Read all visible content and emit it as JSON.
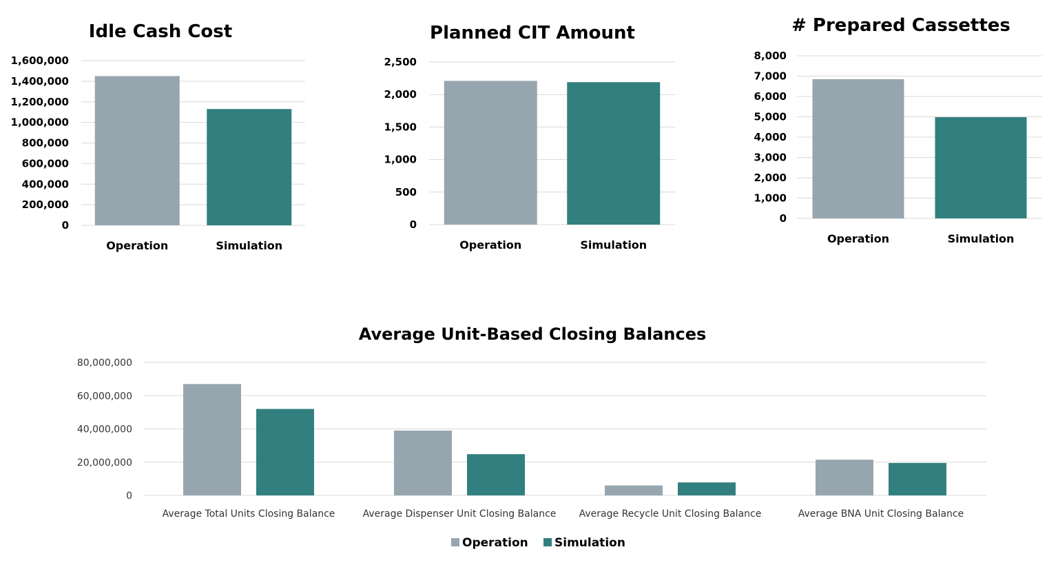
{
  "chart_data": [
    {
      "type": "bar",
      "title": "Idle Cash Cost",
      "categories": [
        "Operation",
        "Simulation"
      ],
      "values": [
        1450000,
        1130000
      ],
      "colors": [
        "#97a6ae",
        "#327f7f"
      ],
      "ylim": [
        0,
        1600000
      ],
      "yticks": [
        "0",
        "200,000",
        "400,000",
        "600,000",
        "800,000",
        "1,000,000",
        "1,200,000",
        "1,400,000",
        "1,600,000"
      ],
      "grid": true
    },
    {
      "type": "bar",
      "title": "Planned CIT Amount",
      "categories": [
        "Operation",
        "Simulation"
      ],
      "values": [
        2210,
        2190
      ],
      "colors": [
        "#97a6ae",
        "#327f7f"
      ],
      "ylim": [
        0,
        2500
      ],
      "yticks": [
        "0",
        "500",
        "1,000",
        "1,500",
        "2,000",
        "2,500"
      ],
      "grid": true
    },
    {
      "type": "bar",
      "title": "# Prepared Cassettes",
      "categories": [
        "Operation",
        "Simulation"
      ],
      "values": [
        6850,
        4980
      ],
      "colors": [
        "#97a6ae",
        "#327f7f"
      ],
      "ylim": [
        0,
        8000
      ],
      "yticks": [
        "0",
        "1,000",
        "2,000",
        "3,000",
        "4,000",
        "5,000",
        "6,000",
        "7,000",
        "8,000"
      ],
      "grid": true
    },
    {
      "type": "bar",
      "title": "Average Unit-Based Closing Balances",
      "categories": [
        "Average Total Units Closing Balance",
        "Average Dispenser Unit Closing Balance",
        "Average Recycle Unit Closing Balance",
        "Average BNA Unit Closing Balance"
      ],
      "series": [
        {
          "name": "Operation",
          "values": [
            67000000,
            39000000,
            6000000,
            21500000
          ],
          "color": "#97a6ae"
        },
        {
          "name": "Simulation",
          "values": [
            52000000,
            24800000,
            7800000,
            19500000
          ],
          "color": "#327f7f"
        }
      ],
      "ylim": [
        0,
        80000000
      ],
      "yticks": [
        "0",
        "20,000,000",
        "40,000,000",
        "60,000,000",
        "80,000,000"
      ],
      "grid": true,
      "legend": "bottom"
    }
  ]
}
